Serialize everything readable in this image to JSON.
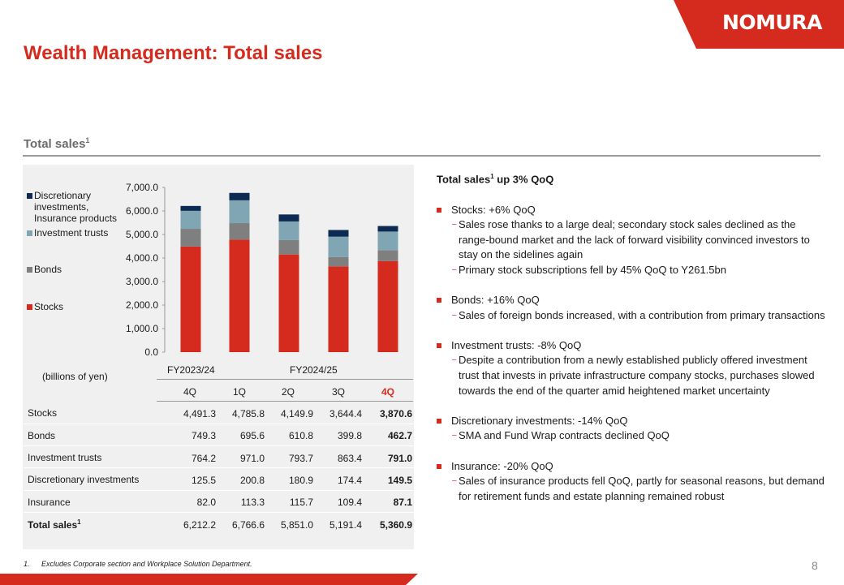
{
  "brand": {
    "logo_text": "NOMURA",
    "accent_color": "#d52b1e"
  },
  "page": {
    "title": "Wealth Management: Total sales",
    "number": "8"
  },
  "section": {
    "title": "Total sales",
    "title_sup": "1"
  },
  "chart_data": {
    "type": "bar",
    "stacked": true,
    "categories": [
      "FY2023/24 4Q",
      "FY2024/25 1Q",
      "FY2024/25 2Q",
      "FY2024/25 3Q",
      "FY2024/25 4Q"
    ],
    "series": [
      {
        "name": "Stocks",
        "color": "#d52b1e",
        "values": [
          4491.3,
          4785.8,
          4149.9,
          3644.4,
          3870.6
        ]
      },
      {
        "name": "Bonds",
        "color": "#7f7f7f",
        "values": [
          749.3,
          695.6,
          610.8,
          399.8,
          462.7
        ]
      },
      {
        "name": "Investment trusts",
        "color": "#7fa6b2",
        "values": [
          764.2,
          971.0,
          793.7,
          863.4,
          791.0
        ]
      },
      {
        "name": "Discretionary investments, Insurance products",
        "color": "#0d2b52",
        "values": [
          207.5,
          314.1,
          296.6,
          283.8,
          236.6
        ]
      }
    ],
    "y_ticks": [
      "7,000.0",
      "6,000.0",
      "5,000.0",
      "4,000.0",
      "3,000.0",
      "2,000.0",
      "1,000.0",
      "0.0"
    ],
    "ylim": [
      0,
      7000
    ],
    "legend_placement": "left",
    "grid": false
  },
  "legend": [
    {
      "label": "Discretionary investments, Insurance products",
      "color": "#0d2b52"
    },
    {
      "label": "Investment trusts",
      "color": "#7fa6b2"
    },
    {
      "label": "Bonds",
      "color": "#7f7f7f"
    },
    {
      "label": "Stocks",
      "color": "#d52b1e"
    }
  ],
  "table": {
    "units": "(billions of yen)",
    "fiscal_years": [
      "FY2023/24",
      "FY2024/25"
    ],
    "quarters": [
      "4Q",
      "1Q",
      "2Q",
      "3Q",
      "4Q"
    ],
    "rows": [
      {
        "label": "Stocks",
        "values": [
          "4,491.3",
          "4,785.8",
          "4,149.9",
          "3,644.4",
          "3,870.6"
        ]
      },
      {
        "label": "Bonds",
        "values": [
          "749.3",
          "695.6",
          "610.8",
          "399.8",
          "462.7"
        ]
      },
      {
        "label": "Investment trusts",
        "values": [
          "764.2",
          "971.0",
          "793.7",
          "863.4",
          "791.0"
        ]
      },
      {
        "label": "Discretionary investments",
        "values": [
          "125.5",
          "200.8",
          "180.9",
          "174.4",
          "149.5"
        ]
      },
      {
        "label": "Insurance",
        "values": [
          "82.0",
          "113.3",
          "115.7",
          "109.4",
          "87.1"
        ]
      },
      {
        "label": "Total sales",
        "label_sup": "1",
        "values": [
          "6,212.2",
          "6,766.6",
          "5,851.0",
          "5,191.4",
          "5,360.9"
        ]
      }
    ]
  },
  "commentary": {
    "heading_pre": "Total sales",
    "heading_sup": "1",
    "heading_post": " up 3% QoQ",
    "bullets": [
      {
        "text": "Stocks: +6% QoQ",
        "subs": [
          "Sales rose thanks to a large deal; secondary stock sales declined as the range-bound market and the lack of forward visibility convinced investors to stay on the sidelines again",
          "Primary stock subscriptions fell by 45% QoQ to Y261.5bn"
        ]
      },
      {
        "text": "Bonds: +16% QoQ",
        "subs": [
          "Sales of foreign bonds increased, with a contribution from primary transactions"
        ]
      },
      {
        "text": "Investment trusts: -8% QoQ",
        "subs": [
          "Despite a contribution from a newly established publicly offered investment trust that invests in private infrastructure company stocks, purchases slowed towards the end of the quarter amid heightened market uncertainty"
        ]
      },
      {
        "text": "Discretionary investments: -14% QoQ",
        "subs": [
          "SMA and Fund Wrap contracts declined QoQ"
        ]
      },
      {
        "text": "Insurance: -20% QoQ",
        "subs": [
          "Sales of insurance products fell QoQ, partly for seasonal reasons, but demand for retirement funds and estate planning remained robust"
        ]
      }
    ]
  },
  "footnote": {
    "number": "1.",
    "text": "Excludes Corporate section and Workplace Solution Department."
  }
}
